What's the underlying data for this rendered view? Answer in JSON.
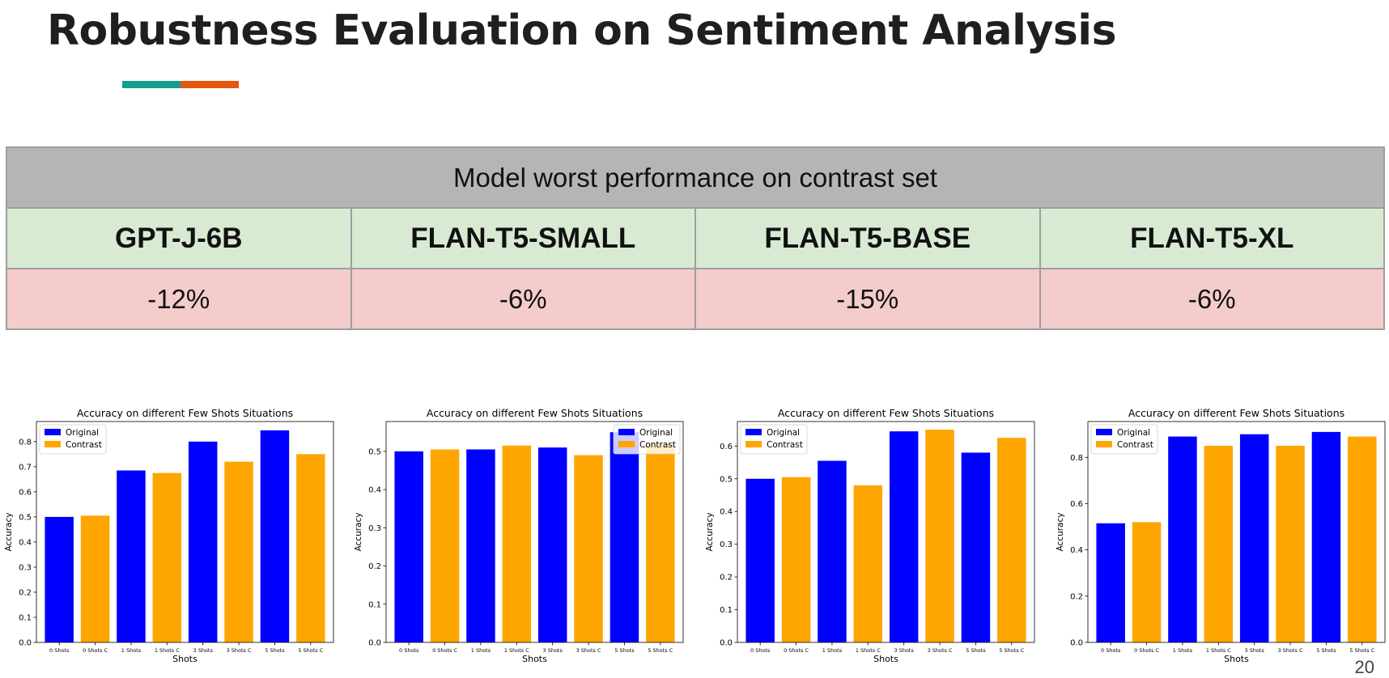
{
  "slide": {
    "title": "Robustness Evaluation on Sentiment Analysis",
    "page_number": "20",
    "accent_colors": [
      "#169b8f",
      "#e3570f"
    ]
  },
  "table": {
    "caption": "Model worst performance on contrast set",
    "models": [
      "GPT-J-6B",
      "FLAN-T5-SMALL",
      "FLAN-T5-BASE",
      "FLAN-T5-XL"
    ],
    "drops": [
      "-12%",
      "-6%",
      "-15%",
      "-6%"
    ],
    "colors": {
      "caption_bg": "#b5b5b5",
      "model_bg": "#d9ead3",
      "drop_bg": "#f4cccc"
    }
  },
  "chart_data": [
    {
      "type": "bar",
      "title": "Accuracy on different Few Shots Situations",
      "xlabel": "Shots",
      "ylabel": "Accuracy",
      "categories": [
        "0 Shots",
        "0 Shots C",
        "1 Shots",
        "1 Shots C",
        "3 Shots",
        "3 Shots C",
        "5 Shots",
        "5 Shots C"
      ],
      "values": [
        0.5,
        0.505,
        0.685,
        0.675,
        0.8,
        0.72,
        0.845,
        0.75
      ],
      "bar_colors": [
        "#0000ff",
        "#ffa500",
        "#0000ff",
        "#ffa500",
        "#0000ff",
        "#ffa500",
        "#0000ff",
        "#ffa500"
      ],
      "legend": [
        {
          "label": "Original",
          "color": "#0000ff"
        },
        {
          "label": "Contrast",
          "color": "#ffa500"
        }
      ],
      "legend_position": "upper left",
      "ylim": [
        0,
        0.88
      ],
      "yticks": [
        0.0,
        0.1,
        0.2,
        0.3,
        0.4,
        0.5,
        0.6,
        0.7,
        0.8
      ]
    },
    {
      "type": "bar",
      "title": "Accuracy on different Few Shots Situations",
      "xlabel": "Shots",
      "ylabel": "Accuracy",
      "categories": [
        "0 Shots",
        "0 Shots C",
        "1 Shots",
        "1 Shots C",
        "3 Shots",
        "3 Shots C",
        "5 Shots",
        "5 Shots C"
      ],
      "values": [
        0.5,
        0.505,
        0.505,
        0.515,
        0.51,
        0.49,
        0.55,
        0.52
      ],
      "bar_colors": [
        "#0000ff",
        "#ffa500",
        "#0000ff",
        "#ffa500",
        "#0000ff",
        "#ffa500",
        "#0000ff",
        "#ffa500"
      ],
      "legend": [
        {
          "label": "Original",
          "color": "#0000ff"
        },
        {
          "label": "Contrast",
          "color": "#ffa500"
        }
      ],
      "legend_position": "upper right",
      "ylim": [
        0,
        0.578
      ],
      "yticks": [
        0.0,
        0.1,
        0.2,
        0.3,
        0.4,
        0.5
      ]
    },
    {
      "type": "bar",
      "title": "Accuracy on different Few Shots Situations",
      "xlabel": "Shots",
      "ylabel": "Accuracy",
      "categories": [
        "0 Shots",
        "0 Shots C",
        "1 Shots",
        "1 Shots C",
        "3 Shots",
        "3 Shots C",
        "5 Shots",
        "5 Shots C"
      ],
      "values": [
        0.5,
        0.505,
        0.555,
        0.48,
        0.645,
        0.65,
        0.58,
        0.625
      ],
      "bar_colors": [
        "#0000ff",
        "#ffa500",
        "#0000ff",
        "#ffa500",
        "#0000ff",
        "#ffa500",
        "#0000ff",
        "#ffa500"
      ],
      "legend": [
        {
          "label": "Original",
          "color": "#0000ff"
        },
        {
          "label": "Contrast",
          "color": "#ffa500"
        }
      ],
      "legend_position": "upper left",
      "ylim": [
        0,
        0.675
      ],
      "yticks": [
        0.0,
        0.1,
        0.2,
        0.3,
        0.4,
        0.5,
        0.6
      ]
    },
    {
      "type": "bar",
      "title": "Accuracy on different Few Shots Situations",
      "xlabel": "Shots",
      "ylabel": "Accuracy",
      "categories": [
        "0 Shots",
        "0 Shots C",
        "1 Shots",
        "1 Shots C",
        "3 Shots",
        "3 Shots C",
        "5 Shots",
        "5 Shots C"
      ],
      "values": [
        0.515,
        0.52,
        0.89,
        0.85,
        0.9,
        0.85,
        0.91,
        0.89
      ],
      "bar_colors": [
        "#0000ff",
        "#ffa500",
        "#0000ff",
        "#ffa500",
        "#0000ff",
        "#ffa500",
        "#0000ff",
        "#ffa500"
      ],
      "legend": [
        {
          "label": "Original",
          "color": "#0000ff"
        },
        {
          "label": "Contrast",
          "color": "#ffa500"
        }
      ],
      "legend_position": "upper left",
      "ylim": [
        0,
        0.955
      ],
      "yticks": [
        0.0,
        0.2,
        0.4,
        0.6,
        0.8
      ]
    }
  ]
}
